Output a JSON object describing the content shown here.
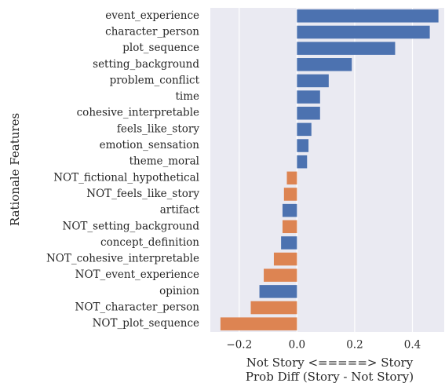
{
  "chart_data": {
    "type": "barh",
    "ylabel": "Rationale Features",
    "xlabel": [
      "Not Story <=====> Story",
      "Prob Diff (Story - Not Story)"
    ],
    "categories": [
      "event_experience",
      "character_person",
      "plot_sequence",
      "setting_background",
      "problem_conflict",
      "time",
      "cohesive_interpretable",
      "feels_like_story",
      "emotion_sensation",
      "theme_moral",
      "NOT_fictional_hypothetical",
      "NOT_feels_like_story",
      "artifact",
      "NOT_setting_background",
      "concept_definition",
      "NOT_cohesive_interpretable",
      "NOT_event_experience",
      "opinion",
      "NOT_character_person",
      "NOT_plot_sequence"
    ],
    "values": [
      0.49,
      0.46,
      0.34,
      0.19,
      0.11,
      0.08,
      0.08,
      0.05,
      0.04,
      0.035,
      -0.035,
      -0.045,
      -0.05,
      -0.05,
      -0.055,
      -0.08,
      -0.115,
      -0.13,
      -0.16,
      -0.265
    ],
    "colors": [
      "#4c72b0",
      "#4c72b0",
      "#4c72b0",
      "#4c72b0",
      "#4c72b0",
      "#4c72b0",
      "#4c72b0",
      "#4c72b0",
      "#4c72b0",
      "#4c72b0",
      "#dd8452",
      "#dd8452",
      "#4c72b0",
      "#dd8452",
      "#4c72b0",
      "#dd8452",
      "#dd8452",
      "#4c72b0",
      "#dd8452",
      "#dd8452"
    ],
    "xlim": [
      -0.3,
      0.51
    ],
    "xticks": [
      {
        "value": -0.2,
        "label": "−0.2"
      },
      {
        "value": 0,
        "label": "0.0"
      },
      0.2,
      0.4
    ],
    "grid": true
  }
}
